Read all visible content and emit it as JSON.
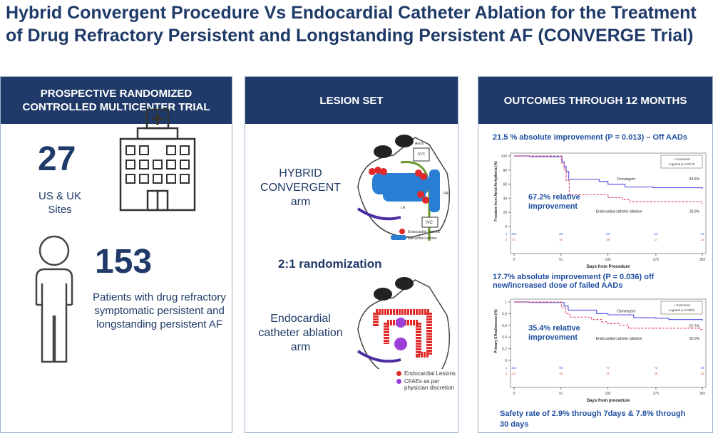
{
  "title": "Hybrid Convergent Procedure Vs Endocardial Catheter Ablation for the Treatment of Drug Refractory Persistent and Longstanding Persistent AF (CONVERGE Trial)",
  "panel1": {
    "header": "PROSPECTIVE RANDOMIZED CONTROLLED MULTICENTER TRIAL",
    "sites_num": "27",
    "sites_label": "US & UK Sites",
    "patients_num": "153",
    "patients_label": "Patients with drug refractory symptomatic persistent and longstanding persistent AF",
    "icons": [
      "hospital-icon",
      "person-icon"
    ]
  },
  "panel2": {
    "header": "LESION SET",
    "arm1": "HYBRID CONVERGENT arm",
    "randomization": "2:1 randomization",
    "arm2": "Endocardial catheter ablation arm",
    "heart1_legend": [
      "Endocardial Lesions",
      "Epicardial Lesions"
    ],
    "heart2_legend": [
      "Endocardial Lesions",
      "CFAEs as per physician discretion"
    ],
    "heart_labels": [
      "Aorta",
      "SVC",
      "RA",
      "LA",
      "IVC"
    ],
    "colors": {
      "endocardial": "#e02a2a",
      "epicardial": "#2a7fd4",
      "cfae": "#9b3fd6"
    }
  },
  "panel3": {
    "header": "OUTCOMES THROUGH 12 MONTHS",
    "result1": "21.5 % absolute improvement (P = 0.013) – Off AADs",
    "result2": "17.7% absolute improvement (P = 0.036) off new/increased dose of failed AADs",
    "safety": "Safety rate of 2.9% through 7days & 7.8% through 30 days"
  },
  "chart_data": [
    {
      "type": "line",
      "ylabel": "Freedom from Atrial Arrhythmia (%)",
      "xlabel": "Days from Procedure",
      "xticks": [
        0,
        91,
        182,
        275,
        365
      ],
      "yticks": [
        0,
        20,
        40,
        60,
        80,
        100
      ],
      "xlim": [
        0,
        365
      ],
      "ylim": [
        0,
        100
      ],
      "legend": [
        "+ Censored",
        "Logrank p=0.0175"
      ],
      "annotation": "67.2% relative improvement",
      "series": [
        {
          "name": "Convergent",
          "end_label": "53.5%",
          "color": "#5a5ae6",
          "dash": false,
          "points": [
            [
              0,
              100
            ],
            [
              30,
              99
            ],
            [
              88,
              99
            ],
            [
              93,
              92
            ],
            [
              97,
              85
            ],
            [
              101,
              78
            ],
            [
              106,
              67
            ],
            [
              148,
              67
            ],
            [
              165,
              64
            ],
            [
              182,
              60
            ],
            [
              215,
              56
            ],
            [
              270,
              55
            ],
            [
              365,
              53.5
            ]
          ]
        },
        {
          "name": "Endocardial catheter ablation",
          "end_label": "32.0%",
          "color": "#e0506a",
          "dash": true,
          "points": [
            [
              0,
              100
            ],
            [
              88,
              100
            ],
            [
              92,
              90
            ],
            [
              97,
              80
            ],
            [
              101,
              65
            ],
            [
              107,
              45
            ],
            [
              168,
              45
            ],
            [
              182,
              41
            ],
            [
              210,
              38
            ],
            [
              225,
              35
            ],
            [
              362,
              35
            ],
            [
              365,
              32
            ]
          ]
        }
      ],
      "at_risk": [
        {
          "group": "1",
          "values": [
            102,
            86,
            59,
            53,
            40
          ]
        },
        {
          "group": "2",
          "values": [
            51,
            40,
            28,
            17,
            13
          ]
        }
      ]
    },
    {
      "type": "line",
      "ylabel": "Primary Effectiveness (%)",
      "xlabel": "Days from procedure",
      "xticks": [
        0,
        91,
        182,
        275,
        365
      ],
      "yticks": [
        0.0,
        0.2,
        0.4,
        0.6,
        0.8,
        1.0
      ],
      "xlim": [
        0,
        365
      ],
      "ylim": [
        0,
        1
      ],
      "legend": [
        "+ Censored",
        "Logrank p=0.0253"
      ],
      "annotation": "35.4% relative improvement",
      "series": [
        {
          "name": "Convergent",
          "end_label": "67.7%",
          "color": "#5a5ae6",
          "dash": false,
          "points": [
            [
              0,
              1
            ],
            [
              30,
              0.99
            ],
            [
              91,
              0.99
            ],
            [
              97,
              0.93
            ],
            [
              105,
              0.86
            ],
            [
              140,
              0.86
            ],
            [
              160,
              0.8
            ],
            [
              182,
              0.78
            ],
            [
              232,
              0.73
            ],
            [
              275,
              0.72
            ],
            [
              300,
              0.7
            ],
            [
              365,
              0.677
            ]
          ]
        },
        {
          "name": "Endocardial catheter ablation",
          "end_label": "50.0%",
          "color": "#e0506a",
          "dash": true,
          "points": [
            [
              0,
              1
            ],
            [
              85,
              1
            ],
            [
              92,
              0.9
            ],
            [
              100,
              0.8
            ],
            [
              108,
              0.74
            ],
            [
              150,
              0.7
            ],
            [
              170,
              0.66
            ],
            [
              182,
              0.63
            ],
            [
              205,
              0.6
            ],
            [
              222,
              0.55
            ],
            [
              362,
              0.53
            ],
            [
              365,
              0.5
            ]
          ]
        }
      ],
      "at_risk": [
        {
          "group": "1",
          "values": [
            102,
            89,
            77,
            72,
            38
          ]
        },
        {
          "group": "2",
          "values": [
            51,
            46,
            31,
            28,
            23
          ]
        }
      ]
    }
  ]
}
